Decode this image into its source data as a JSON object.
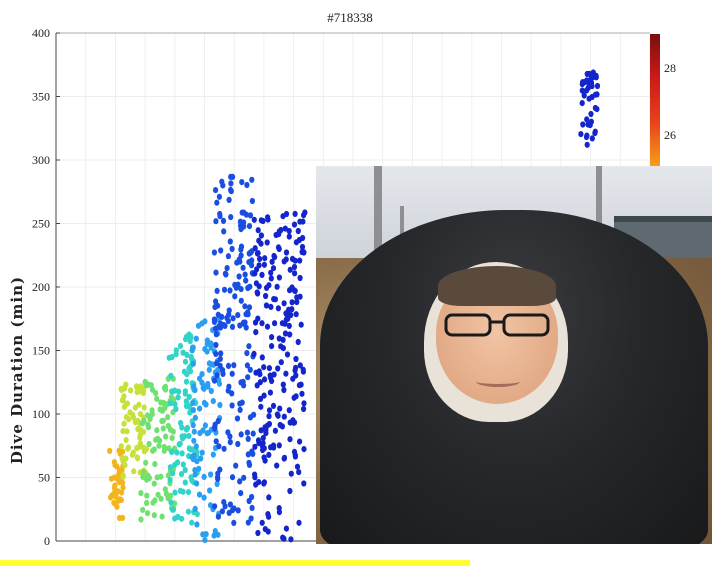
{
  "chart_data": {
    "type": "scatter",
    "title": "#718338",
    "ylabel": "Dive Duration (min)",
    "xlabel": "",
    "ylim": [
      0,
      400
    ],
    "xlim": [
      0,
      21
    ],
    "y_ticks": [
      0,
      50,
      100,
      150,
      200,
      250,
      300,
      350,
      400
    ],
    "grid": true,
    "colorbar": {
      "ticks": [
        26,
        28
      ],
      "colors": [
        "#f7a11a",
        "#e8401a",
        "#c81818",
        "#7a0e10"
      ],
      "position": "right"
    },
    "marker_color_low": "#f2b51e",
    "marker_color_high": "#1425cc",
    "clusters": [
      {
        "x_range": [
          1.9,
          2.4
        ],
        "y_range": [
          12,
          75
        ],
        "color": "#f2b51e",
        "count": 40
      },
      {
        "x_range": [
          2.3,
          3.2
        ],
        "y_range": [
          50,
          125
        ],
        "color": "#c8e03a",
        "count": 70
      },
      {
        "x_range": [
          3.0,
          4.2
        ],
        "y_range": [
          15,
          130
        ],
        "color": "#70e070",
        "count": 90
      },
      {
        "x_range": [
          4.0,
          5.0
        ],
        "y_range": [
          10,
          165
        ],
        "color": "#32d4c8",
        "count": 100
      },
      {
        "x_range": [
          4.8,
          5.8
        ],
        "y_range": [
          0,
          175
        ],
        "color": "#2a9ef0",
        "count": 90
      },
      {
        "x_range": [
          5.6,
          7.0
        ],
        "y_range": [
          5,
          290
        ],
        "color": "#1a4ee0",
        "count": 180
      },
      {
        "x_range": [
          7.0,
          8.8
        ],
        "y_range": [
          0,
          260
        ],
        "color": "#1425cc",
        "count": 220
      },
      {
        "x_range": [
          18.5,
          19.2
        ],
        "y_range": [
          300,
          370
        ],
        "color": "#1425cc",
        "count": 40
      }
    ]
  },
  "photo_inset": {
    "label": "portrait-photo"
  }
}
